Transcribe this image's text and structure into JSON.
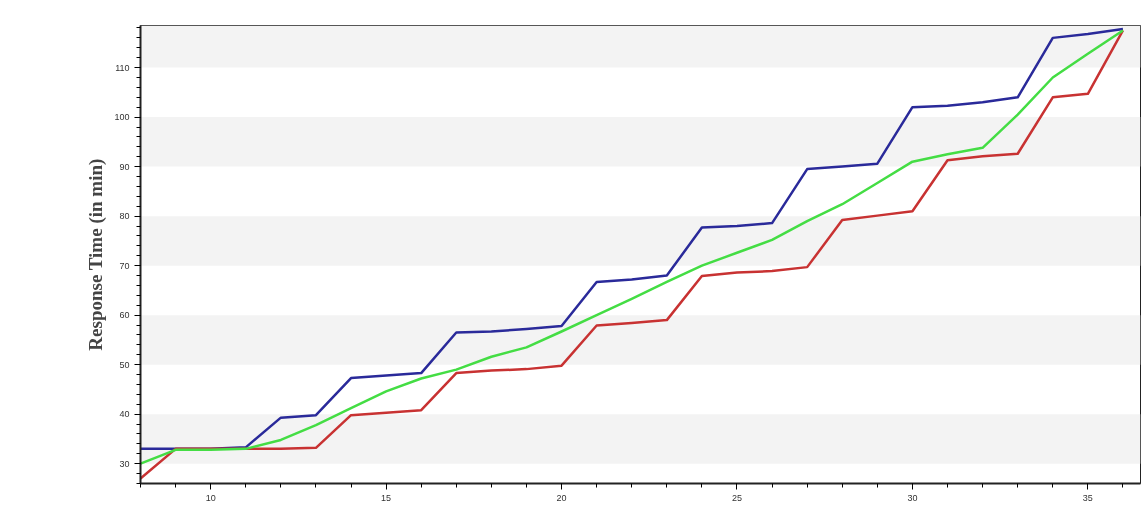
{
  "chart_data": {
    "type": "line",
    "ylabel": "Response Time (in min)",
    "x": [
      8,
      9,
      10,
      11,
      12,
      13,
      14,
      15,
      16,
      17,
      18,
      19,
      20,
      21,
      22,
      23,
      24,
      25,
      26,
      27,
      28,
      29,
      30,
      31,
      32,
      33,
      34,
      35,
      36
    ],
    "series": [
      {
        "color": "#2a2a9a",
        "values": [
          33,
          33,
          33,
          33.3,
          39.3,
          39.8,
          47.3,
          47.8,
          48.3,
          56.5,
          56.7,
          57.2,
          57.8,
          66.7,
          67.2,
          68,
          77.7,
          78,
          78.6,
          89.5,
          90,
          90.6,
          102,
          102.3,
          103,
          104,
          116,
          116.8,
          117.8
        ]
      },
      {
        "color": "#c83232",
        "values": [
          27,
          33,
          33,
          33,
          33,
          33.2,
          39.8,
          40.3,
          40.8,
          48.3,
          48.8,
          49.1,
          49.8,
          57.9,
          58.4,
          59,
          67.9,
          68.6,
          68.9,
          69.7,
          79.2,
          80.1,
          81,
          91.3,
          92.1,
          92.6,
          104,
          104.7,
          117.5
        ]
      },
      {
        "color": "#44dd44",
        "values": [
          30,
          32.8,
          32.8,
          33,
          34.8,
          37.8,
          41.2,
          44.6,
          47.2,
          49,
          51.6,
          53.5,
          56.7,
          60,
          63.3,
          66.7,
          70,
          72.6,
          75.2,
          79,
          82.4,
          86.7,
          91,
          92.5,
          93.8,
          100.5,
          108,
          112.8,
          117.5
        ]
      }
    ],
    "xlim": [
      8,
      36.5
    ],
    "ylim": [
      26,
      118.5
    ],
    "xticks": [
      10,
      15,
      20,
      25,
      30,
      35
    ],
    "yticks": [
      30,
      40,
      50,
      60,
      70,
      80,
      90,
      100,
      110
    ],
    "bands": [
      {
        "axis": "y",
        "from": 30,
        "to": 40,
        "color": "#f3f3f3"
      },
      {
        "axis": "y",
        "from": 50,
        "to": 60,
        "color": "#f3f3f3"
      },
      {
        "axis": "y",
        "from": 70,
        "to": 80,
        "color": "#f3f3f3"
      },
      {
        "axis": "y",
        "from": 90,
        "to": 100,
        "color": "#f3f3f3"
      },
      {
        "axis": "y",
        "from": 110,
        "to": 118.5,
        "color": "#f3f3f3"
      }
    ],
    "marker": "none",
    "line_style": "solid"
  }
}
